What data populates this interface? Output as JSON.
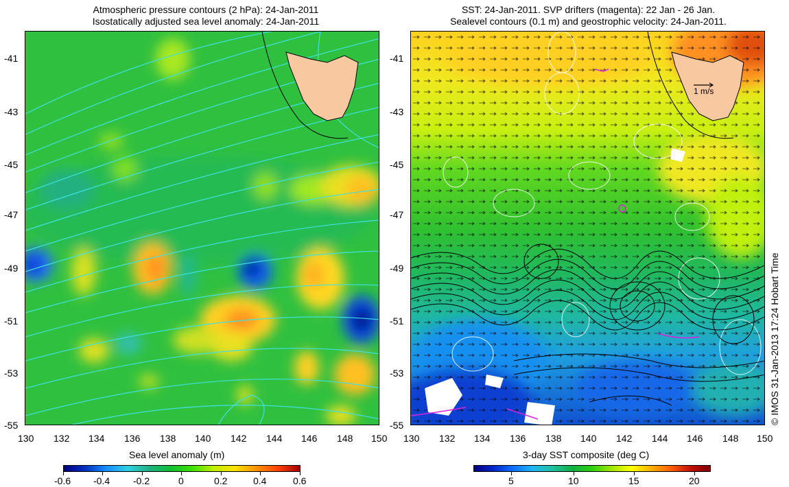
{
  "left_panel": {
    "title_line1": "Atmospheric pressure contours (2 hPa): 24-Jan-2011",
    "title_line2": "Isostatically adjusted sea level anomaly: 24-Jan-2011",
    "colorbar_label": "Sea level anomaly (m)",
    "colorbar_ticks": [
      "-0.6",
      "-0.4",
      "-0.2",
      "0",
      "0.2",
      "0.4",
      "0.6"
    ],
    "contour_color": "#40e0e0",
    "land_color": "#f8c8a0"
  },
  "right_panel": {
    "title_line1": "SST: 24-Jan-2011. SVP drifters (magenta): 22 Jan - 26 Jan.",
    "title_line2": "Sealevel contours (0.1 m) and geostrophic velocity: 24-Jan-2011.",
    "colorbar_label": "3-day SST composite (deg C)",
    "colorbar_ticks": [
      "5",
      "10",
      "15",
      "20"
    ],
    "velocity_scale_label": "1 m/s",
    "drifter_color": "#e020e0",
    "land_color": "#f8c8a0"
  },
  "axes": {
    "y_ticks": [
      "-41",
      "-43",
      "-45",
      "-47",
      "-49",
      "-51",
      "-53",
      "-55"
    ],
    "x_ticks": [
      "130",
      "132",
      "134",
      "136",
      "138",
      "140",
      "142",
      "144",
      "146",
      "148",
      "150"
    ],
    "x_range": [
      130,
      150
    ],
    "y_range": [
      -55,
      -40
    ]
  },
  "credit": "© IMOS 31-Jan-2013 17:24 Hobart Time"
}
